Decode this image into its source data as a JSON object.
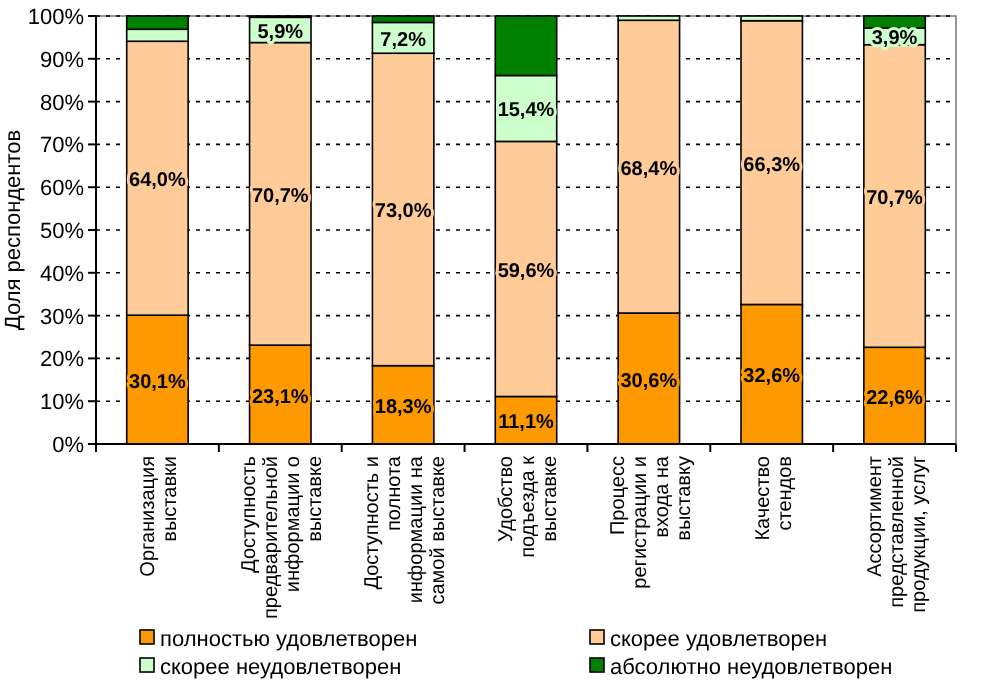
{
  "chart_data": {
    "type": "bar",
    "stacked": true,
    "ylabel": "Доля респондентов",
    "categories": [
      "Организация\nвыставки",
      "Доступность\nпредварительной\nинформации о\nвыставке",
      "Доступность и\nполнота\nинформации на\nсамой выставке",
      "Удобство\nподъезда к\nвыставке",
      "Процесс\nрегистрации и\nвхода на\nвыставку",
      "Качество\nстендов",
      "Ассортимент\nпредставленной\nпродукции, услуг"
    ],
    "series": [
      {
        "name": "полностью удовлетворен",
        "color": "#ff9900",
        "values": [
          30.1,
          23.1,
          18.3,
          11.1,
          30.6,
          32.6,
          22.6
        ],
        "value_labels": [
          "30,1%",
          "23,1%",
          "18,3%",
          "11,1%",
          "30,6%",
          "32,6%",
          "22,6%"
        ]
      },
      {
        "name": "скорее удовлетворен",
        "color": "#ffcc99",
        "values": [
          64.0,
          70.7,
          73.0,
          59.6,
          68.4,
          66.3,
          70.7
        ],
        "value_labels": [
          "64,0%",
          "70,7%",
          "73,0%",
          "59,6%",
          "68,4%",
          "66,3%",
          "70,7%"
        ]
      },
      {
        "name": "скорее неудовлетворен",
        "color": "#ccffcc",
        "values": [
          2.8,
          5.9,
          7.2,
          15.4,
          1.0,
          1.1,
          3.9
        ],
        "value_labels": [
          null,
          "5,9%",
          "7,2%",
          "15,4%",
          null,
          null,
          "3,9%"
        ]
      },
      {
        "name": "абсолютно неудовлетворен",
        "color": "#008000",
        "values": [
          3.1,
          0.3,
          1.5,
          13.9,
          0,
          0,
          2.8
        ]
      }
    ],
    "ylim": [
      0,
      100
    ],
    "yticks": [
      {
        "value": 0,
        "label": "0%"
      },
      {
        "value": 10,
        "label": "10%"
      },
      {
        "value": 20,
        "label": "20%"
      },
      {
        "value": 30,
        "label": "30%"
      },
      {
        "value": 40,
        "label": "40%"
      },
      {
        "value": 50,
        "label": "50%"
      },
      {
        "value": 60,
        "label": "60%"
      },
      {
        "value": 70,
        "label": "70%"
      },
      {
        "value": 80,
        "label": "80%"
      },
      {
        "value": 90,
        "label": "90%"
      },
      {
        "value": 100,
        "label": "100%"
      }
    ],
    "grid": "y",
    "legend": "bottom"
  }
}
